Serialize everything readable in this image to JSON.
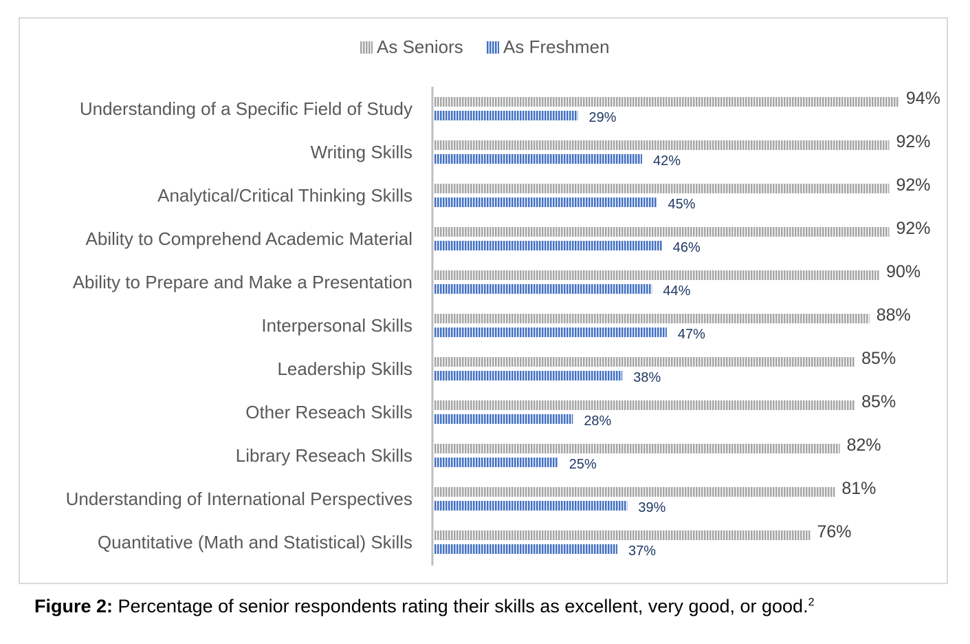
{
  "chart_data": {
    "type": "bar",
    "orientation": "horizontal",
    "legend_position": "top",
    "grid": false,
    "xlim": [
      0,
      100
    ],
    "categories": [
      "Understanding of a Specific Field of Study",
      "Writing Skills",
      "Analytical/Critical Thinking Skills",
      "Ability to Comprehend Academic Material",
      "Ability to Prepare and Make a Presentation",
      "Interpersonal Skills",
      "Leadership Skills",
      "Other Reseach Skills",
      "Library Reseach Skills",
      "Understanding of International Perspectives",
      "Quantitative (Math and Statistical) Skills"
    ],
    "series": [
      {
        "name": "As Seniors",
        "color": "#a6a6a6",
        "values": [
          94,
          92,
          92,
          92,
          90,
          88,
          85,
          85,
          82,
          81,
          76
        ],
        "labels": [
          "94%",
          "92%",
          "92%",
          "92%",
          "90%",
          "88%",
          "85%",
          "85%",
          "82%",
          "81%",
          "76%"
        ]
      },
      {
        "name": "As Freshmen",
        "color": "#4472c4",
        "values": [
          29,
          42,
          45,
          46,
          44,
          47,
          38,
          28,
          25,
          39,
          37
        ],
        "labels": [
          "29%",
          "42%",
          "45%",
          "46%",
          "44%",
          "47%",
          "38%",
          "28%",
          "25%",
          "39%",
          "37%"
        ]
      }
    ]
  },
  "caption": {
    "label": "Figure 2:",
    "text": " Percentage of senior respondents rating their skills as excellent, very good, or good.",
    "footnote": "2"
  }
}
